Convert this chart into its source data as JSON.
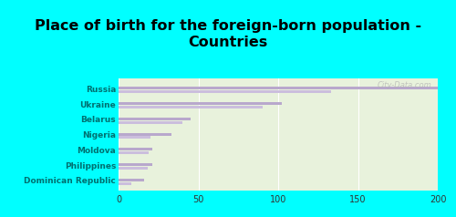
{
  "title": "Place of birth for the foreign-born population -\nCountries",
  "categories": [
    "Russia",
    "Ukraine",
    "Belarus",
    "Nigeria",
    "Moldova",
    "Philippines",
    "Dominican Republic"
  ],
  "values_top": [
    200,
    102,
    45,
    33,
    21,
    21,
    16
  ],
  "values_bottom": [
    133,
    90,
    40,
    20,
    19,
    18,
    8
  ],
  "bar_color_top": "#b8a8cc",
  "bar_color_bottom": "#cbbedd",
  "background_outer": "#00ffff",
  "background_inner": "#e8f2dc",
  "xlim": [
    0,
    200
  ],
  "xticks": [
    0,
    50,
    100,
    150,
    200
  ],
  "title_fontsize": 11.5,
  "label_color": "#007070",
  "tick_color": "#333333",
  "watermark": "City-Data.com",
  "bar_height": 0.18,
  "bar_gap": 0.05
}
